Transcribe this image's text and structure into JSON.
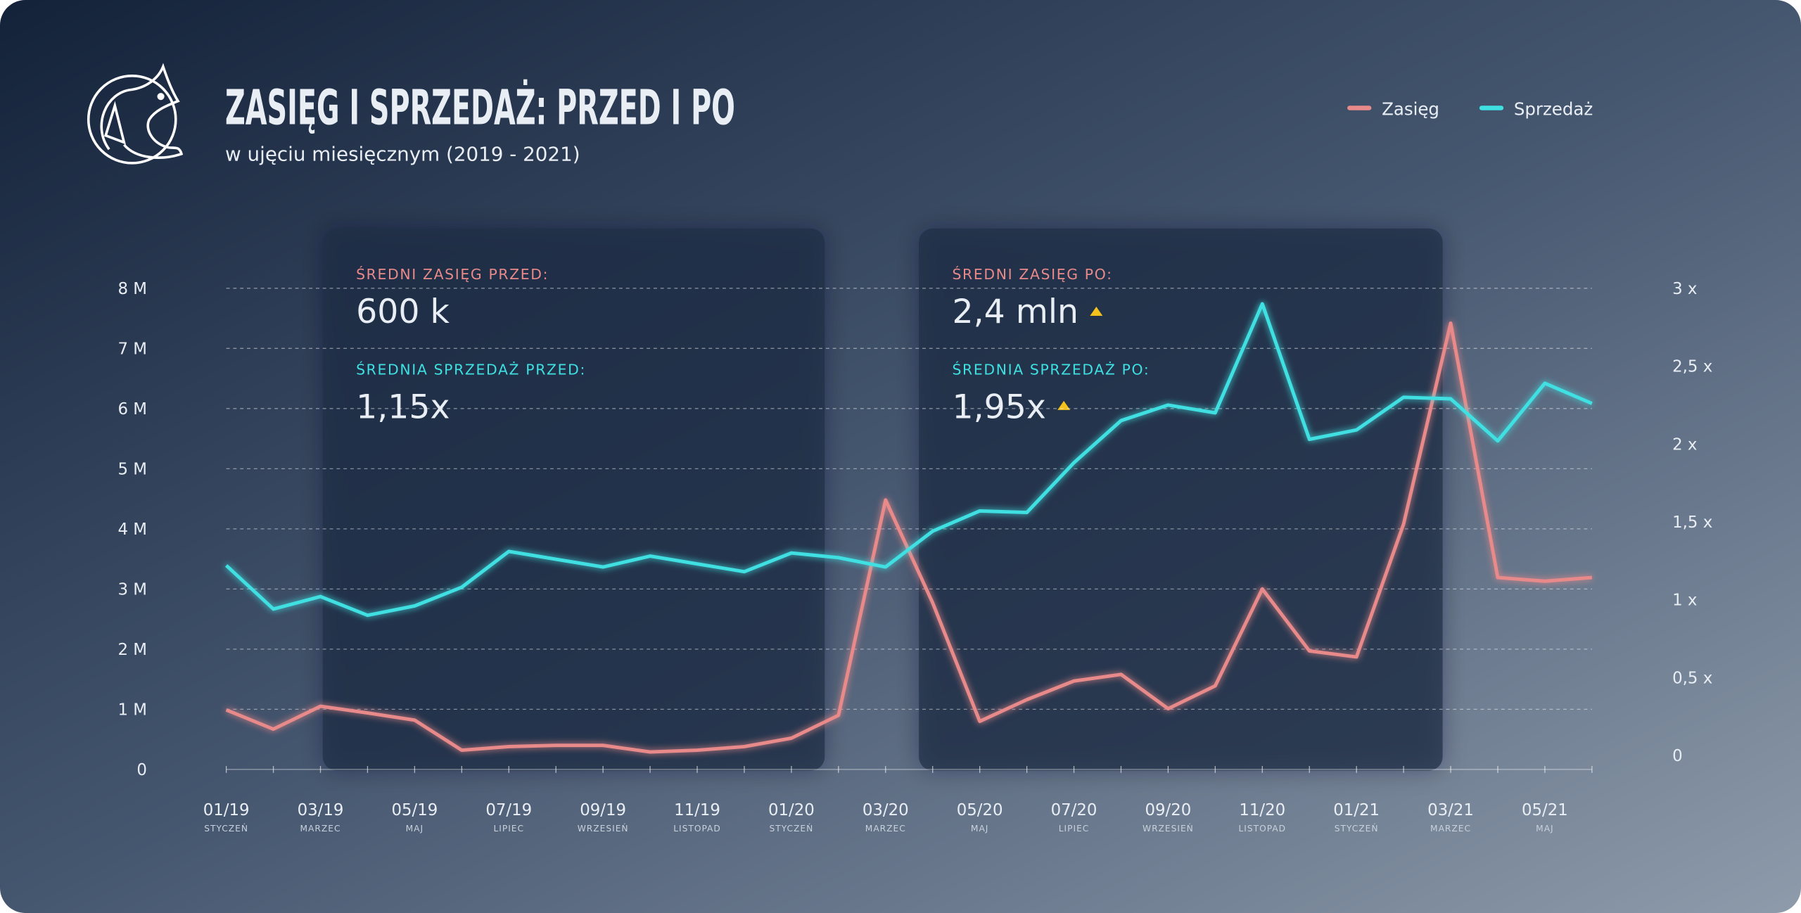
{
  "chart_data": {
    "type": "line",
    "title": "ZASIĘG I SPRZEDAŻ: PRZED I PO",
    "subtitle": "w ujęciu miesięcznym (2019 - 2021)",
    "categories": [
      "01/19",
      null,
      "03/19",
      null,
      "05/19",
      null,
      "07/19",
      null,
      "09/19",
      null,
      "11/19",
      null,
      "01/20",
      null,
      "03/20",
      null,
      "05/20",
      null,
      "07/20",
      null,
      "09/20",
      null,
      "11/20",
      null,
      "01/21",
      null,
      "03/21",
      null,
      "05/21",
      null
    ],
    "month_names": [
      "STYCZEŃ",
      null,
      "MARZEC",
      null,
      "MAJ",
      null,
      "LIPIEC",
      null,
      "WRZESIEŃ",
      null,
      "LISTOPAD",
      null,
      "STYCZEŃ",
      null,
      "MARZEC",
      null,
      "MAJ",
      null,
      "LIPIEC",
      null,
      "WRZESIEŃ",
      null,
      "LISTOPAD",
      null,
      "STYCZEŃ",
      null,
      "MARZEC",
      null,
      "MAJ",
      null
    ],
    "series": [
      {
        "name": "Zasięg",
        "color": "#e8898a",
        "values": [
          990000,
          670000,
          1050000,
          940000,
          820000,
          320000,
          380000,
          400000,
          400000,
          290000,
          320000,
          380000,
          520000,
          900000,
          4480000,
          2770000,
          800000,
          1160000,
          1470000,
          1580000,
          1010000,
          1390000,
          3000000,
          1970000,
          1870000,
          4080000,
          7420000,
          3190000,
          3130000,
          3190000
        ]
      },
      {
        "name": "Sprzedaż",
        "color": "#3fe0e2",
        "axis": "y2",
        "values": [
          1.22,
          0.94,
          1.02,
          0.9,
          0.96,
          1.08,
          1.31,
          1.26,
          1.21,
          1.28,
          1.23,
          1.18,
          1.3,
          1.27,
          1.21,
          1.44,
          1.57,
          1.56,
          1.88,
          2.15,
          2.25,
          2.2,
          2.9,
          2.03,
          2.09,
          2.3,
          2.29,
          2.02,
          2.39,
          2.26
        ]
      }
    ],
    "ylim": [
      0,
      8000000
    ],
    "yticks": [
      0,
      {
        "value": 1000000,
        "label": "1 M"
      },
      {
        "value": 2000000,
        "label": "2 M"
      },
      {
        "value": 3000000,
        "label": "3 M"
      },
      {
        "value": 4000000,
        "label": "4 M"
      },
      {
        "value": 5000000,
        "label": "5 M"
      },
      {
        "value": 6000000,
        "label": "6 M"
      },
      {
        "value": 7000000,
        "label": "7 M"
      },
      {
        "value": 8000000,
        "label": "8 M"
      }
    ],
    "y2lim": [
      -0.09,
      3
    ],
    "y2ticks": [
      0,
      {
        "value": 0.5,
        "label": "0,5 x"
      },
      {
        "value": 1,
        "label": "1 x"
      },
      {
        "value": 1.5,
        "label": "1,5  x"
      },
      {
        "value": 2,
        "label": "2 x"
      },
      {
        "value": 2.5,
        "label": "2,5 x"
      },
      {
        "value": 3,
        "label": "3 x"
      }
    ],
    "grid": true,
    "legend": "top-right",
    "panels": [
      {
        "reach_label": "ŚREDNI ZASIĘG PRZED:",
        "reach_value": "600 k",
        "sales_label": "ŚREDNIA SPRZEDAŻ PRZED:",
        "sales_value": "1,15x"
      },
      {
        "reach_label": "ŚREDNI ZASIĘG PO:",
        "reach_value": "2,4 mln",
        "sales_label": "ŚREDNIA SPRZEDAŻ PO:",
        "sales_value": "1,95x"
      }
    ]
  }
}
